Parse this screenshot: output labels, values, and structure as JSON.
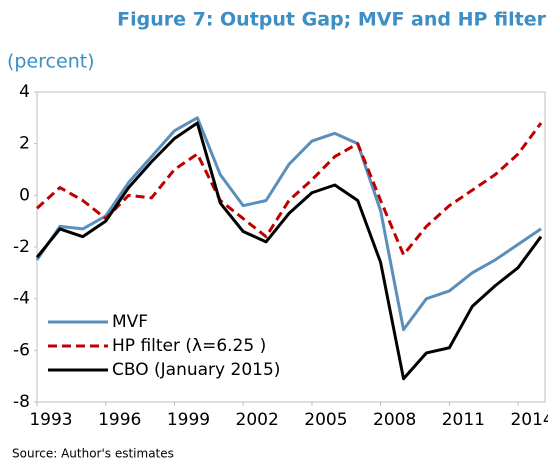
{
  "chart_data": {
    "type": "line",
    "title": "Figure 7: Output Gap; MVF and HP filter",
    "subtitle": "(percent)",
    "source": "Source: Author's estimates",
    "x": [
      1993,
      1994,
      1995,
      1996,
      1997,
      1998,
      1999,
      2000,
      2001,
      2002,
      2003,
      2004,
      2005,
      2006,
      2007,
      2008,
      2009,
      2010,
      2011,
      2012,
      2013,
      2014,
      2015
    ],
    "series": [
      {
        "name": "MVF",
        "color": "#5a8fbb",
        "dash": false,
        "values": [
          -2.5,
          -1.2,
          -1.3,
          -0.8,
          0.5,
          1.5,
          2.5,
          3.0,
          0.8,
          -0.4,
          -0.2,
          1.2,
          2.1,
          2.4,
          2.0,
          -0.6,
          -5.2,
          -4.0,
          -3.7,
          -3.0,
          -2.5,
          -1.9,
          -1.3
        ]
      },
      {
        "name": "HP filter (λ=6.25 )",
        "color": "#c00000",
        "dash": true,
        "values": [
          -0.5,
          0.3,
          -0.2,
          -0.9,
          0.0,
          -0.1,
          1.0,
          1.6,
          -0.2,
          -0.9,
          -1.6,
          -0.2,
          0.6,
          1.5,
          2.0,
          -0.2,
          -2.3,
          -1.2,
          -0.4,
          0.2,
          0.8,
          1.6,
          2.8
        ]
      },
      {
        "name": "CBO (January 2015)",
        "color": "#000000",
        "dash": false,
        "values": [
          -2.4,
          -1.3,
          -1.6,
          -1.0,
          0.3,
          1.3,
          2.2,
          2.8,
          -0.3,
          -1.4,
          -1.8,
          -0.7,
          0.1,
          0.4,
          -0.2,
          -2.6,
          -7.1,
          -6.1,
          -5.9,
          -4.3,
          -3.5,
          -2.8,
          -1.6
        ]
      }
    ],
    "xlim": [
      1993,
      2015
    ],
    "xticks": [
      1993,
      1996,
      1999,
      2002,
      2005,
      2008,
      2011,
      2014
    ],
    "ylim": [
      -8,
      4
    ],
    "yticks": [
      -8,
      -6,
      -4,
      -2,
      0,
      2,
      4
    ],
    "legend": "lower left"
  }
}
